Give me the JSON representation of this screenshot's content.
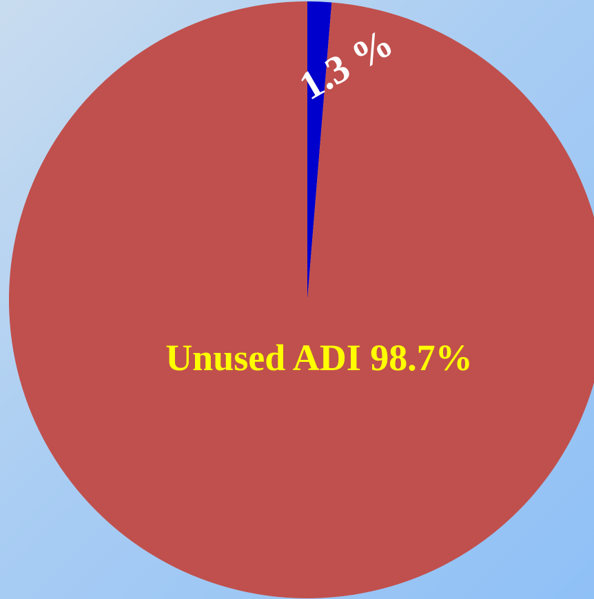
{
  "chart_data": {
    "type": "pie",
    "slices": [
      {
        "label": "Unused ADI",
        "value": 98.7,
        "display": "Unused  ADI  98.7%",
        "color": "#c0504d",
        "text_color": "#ffff00"
      },
      {
        "label": "",
        "value": 1.3,
        "display": "1.3 %",
        "color": "#0000cc",
        "text_color": "#ffffff"
      }
    ],
    "title": "",
    "legend": "none"
  }
}
